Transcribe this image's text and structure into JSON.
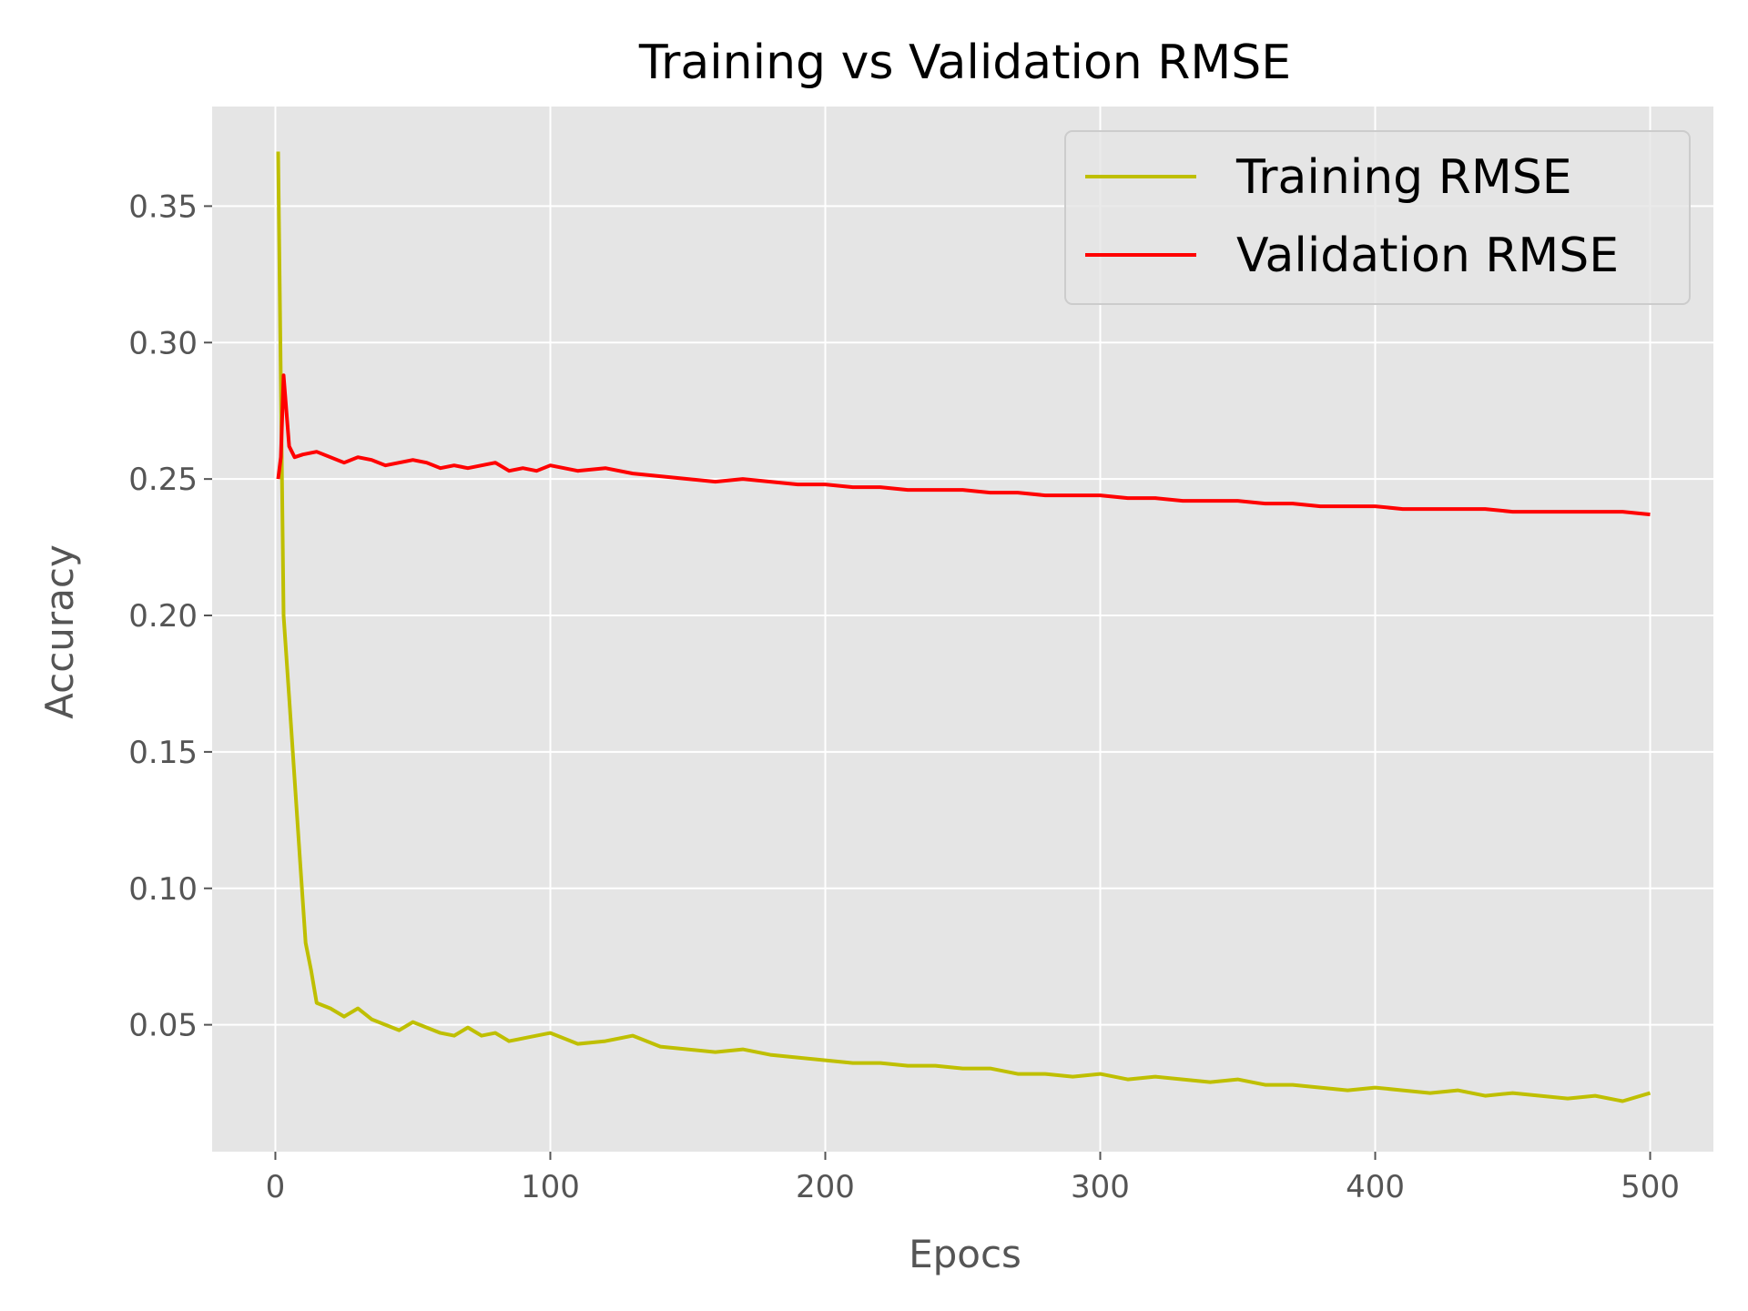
{
  "chart_data": {
    "type": "line",
    "title": "Training vs Validation RMSE",
    "xlabel": "Epocs",
    "ylabel": "Accuracy",
    "xlim": [
      -23,
      523
    ],
    "ylim": [
      0.0035,
      0.3865
    ],
    "xticks": [
      0,
      100,
      200,
      300,
      400,
      500
    ],
    "yticks": [
      0.05,
      0.1,
      0.15,
      0.2,
      0.25,
      0.3,
      0.35
    ],
    "ytick_labels": [
      "0.05",
      "0.10",
      "0.15",
      "0.20",
      "0.25",
      "0.30",
      "0.35"
    ],
    "grid": true,
    "legend_position": "top-right",
    "colors": {
      "plot_bg": "#e5e5e5",
      "grid": "#ffffff",
      "training": "#bfbf00",
      "validation": "#ff0000"
    },
    "series": [
      {
        "name": "Training RMSE",
        "color": "#bfbf00",
        "x": [
          1,
          3,
          5,
          7,
          9,
          11,
          13,
          15,
          20,
          25,
          30,
          35,
          40,
          45,
          50,
          55,
          60,
          65,
          70,
          75,
          80,
          85,
          90,
          95,
          100,
          110,
          120,
          130,
          140,
          150,
          160,
          170,
          180,
          190,
          200,
          210,
          220,
          230,
          240,
          250,
          260,
          270,
          280,
          290,
          300,
          310,
          320,
          330,
          340,
          350,
          360,
          370,
          380,
          390,
          400,
          410,
          420,
          430,
          440,
          450,
          460,
          470,
          480,
          490,
          500
        ],
        "y": [
          0.37,
          0.2,
          0.17,
          0.14,
          0.11,
          0.08,
          0.07,
          0.058,
          0.056,
          0.053,
          0.056,
          0.052,
          0.05,
          0.048,
          0.051,
          0.049,
          0.047,
          0.046,
          0.049,
          0.046,
          0.047,
          0.044,
          0.045,
          0.046,
          0.047,
          0.043,
          0.044,
          0.046,
          0.042,
          0.041,
          0.04,
          0.041,
          0.039,
          0.038,
          0.037,
          0.036,
          0.036,
          0.035,
          0.035,
          0.034,
          0.034,
          0.032,
          0.032,
          0.031,
          0.032,
          0.03,
          0.031,
          0.03,
          0.029,
          0.03,
          0.028,
          0.028,
          0.027,
          0.026,
          0.027,
          0.026,
          0.025,
          0.026,
          0.024,
          0.025,
          0.024,
          0.023,
          0.024,
          0.022,
          0.025
        ]
      },
      {
        "name": "Validation RMSE",
        "color": "#ff0000",
        "x": [
          1,
          2,
          3,
          5,
          7,
          10,
          15,
          20,
          25,
          30,
          35,
          40,
          45,
          50,
          55,
          60,
          65,
          70,
          75,
          80,
          85,
          90,
          95,
          100,
          110,
          120,
          130,
          140,
          150,
          160,
          170,
          180,
          190,
          200,
          210,
          220,
          230,
          240,
          250,
          260,
          270,
          280,
          290,
          300,
          310,
          320,
          330,
          340,
          350,
          360,
          370,
          380,
          390,
          400,
          410,
          420,
          430,
          440,
          450,
          460,
          470,
          480,
          490,
          500
        ],
        "y": [
          0.25,
          0.258,
          0.288,
          0.262,
          0.258,
          0.259,
          0.26,
          0.258,
          0.256,
          0.258,
          0.257,
          0.255,
          0.256,
          0.257,
          0.256,
          0.254,
          0.255,
          0.254,
          0.255,
          0.256,
          0.253,
          0.254,
          0.253,
          0.255,
          0.253,
          0.254,
          0.252,
          0.251,
          0.25,
          0.249,
          0.25,
          0.249,
          0.248,
          0.248,
          0.247,
          0.247,
          0.246,
          0.246,
          0.246,
          0.245,
          0.245,
          0.244,
          0.244,
          0.244,
          0.243,
          0.243,
          0.242,
          0.242,
          0.242,
          0.241,
          0.241,
          0.24,
          0.24,
          0.24,
          0.239,
          0.239,
          0.239,
          0.239,
          0.238,
          0.238,
          0.238,
          0.238,
          0.238,
          0.237
        ]
      }
    ]
  }
}
